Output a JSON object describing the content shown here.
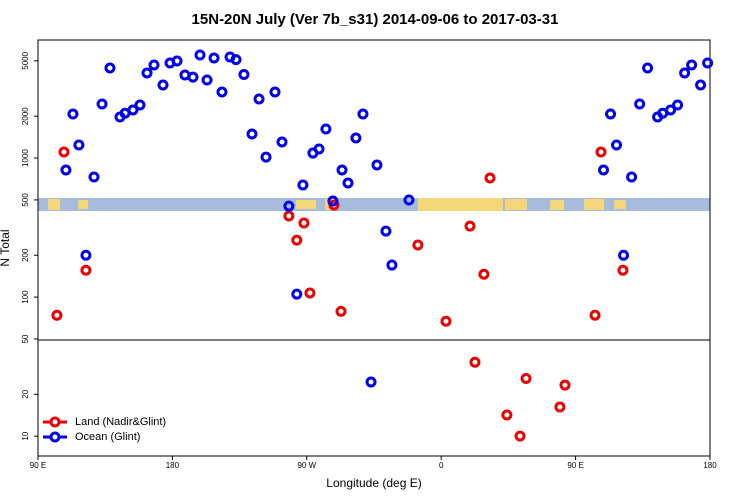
{
  "chart_data": {
    "type": "scatter",
    "title": "15N-20N July (Ver 7b_s31)   2014-09-06 to 2017-03-31",
    "x_label": "Longitude (deg E)",
    "y_label": "N Total",
    "log_y": true,
    "legend": "lower left",
    "xlim": [
      90,
      540
    ],
    "ylim": [
      7.2,
      7060
    ],
    "xticks": [
      {
        "value": 90,
        "label": "90 E"
      },
      180,
      {
        "value": 270,
        "label": "90 W"
      },
      {
        "value": 360,
        "label": "0"
      },
      {
        "value": 450,
        "label": "90 E"
      },
      {
        "value": 540,
        "label": "180"
      }
    ],
    "yticks": [
      10,
      20,
      50,
      100,
      200,
      500,
      1000,
      2000,
      5000
    ],
    "series": [
      {
        "name": "Land (Nadir&Glint)",
        "color": "#ee0000",
        "x": [
          102.7,
          107.4,
          122.1,
          258,
          263.3,
          268.1,
          272.1,
          288.2,
          292.9,
          344.4,
          363.2,
          379.3,
          382.6,
          388.6,
          392.7,
          404,
          412.8,
          416.8,
          439.5,
          442.9,
          463,
          467,
          481.7
        ],
        "values": [
          74,
          1105,
          156,
          383,
          257,
          341,
          107,
          459,
          79,
          237,
          67,
          324,
          34,
          146,
          718,
          14.2,
          10,
          26,
          16.2,
          23.3,
          74,
          1105,
          156
        ]
      },
      {
        "name": "Ocean (Glint)",
        "color": "#0000ee",
        "x": [
          108.7,
          113.4,
          117.4,
          122.1,
          127.5,
          132.9,
          138.2,
          144.9,
          148.3,
          153.6,
          158.3,
          163,
          167.7,
          173.7,
          178.4,
          183.1,
          188.4,
          193.8,
          198.5,
          203.2,
          207.9,
          213.2,
          218.6,
          222.6,
          227.9,
          233.3,
          238,
          242.7,
          248.7,
          253.4,
          258,
          263.3,
          267.4,
          274.1,
          278.2,
          282.8,
          287.5,
          293.6,
          297.6,
          302.9,
          307.6,
          313,
          317,
          323,
          327,
          338.4,
          468.7,
          473.4,
          477.4,
          482.1,
          487.5,
          492.9,
          498.2,
          504.9,
          508.3,
          513.6,
          518.3,
          523,
          527.7,
          533.7,
          538.4
        ],
        "values": [
          820,
          2073,
          1241,
          200,
          730,
          2446,
          4440,
          1972,
          2100,
          2215,
          2406,
          4090,
          4670,
          3350,
          4826,
          4990,
          3955,
          3820,
          5510,
          3640,
          5240,
          2985,
          5330,
          5100,
          3990,
          1489,
          2657,
          1016,
          2985,
          1304,
          451,
          105,
          640,
          1086,
          1161,
          1618,
          491,
          820,
          661,
          1393,
          2073,
          24.5,
          891,
          298,
          170,
          499,
          820,
          2073,
          1241,
          200,
          730,
          2446,
          4440,
          1972,
          2100,
          2215,
          2406,
          4090,
          4670,
          3350,
          4826
        ]
      }
    ]
  }
}
